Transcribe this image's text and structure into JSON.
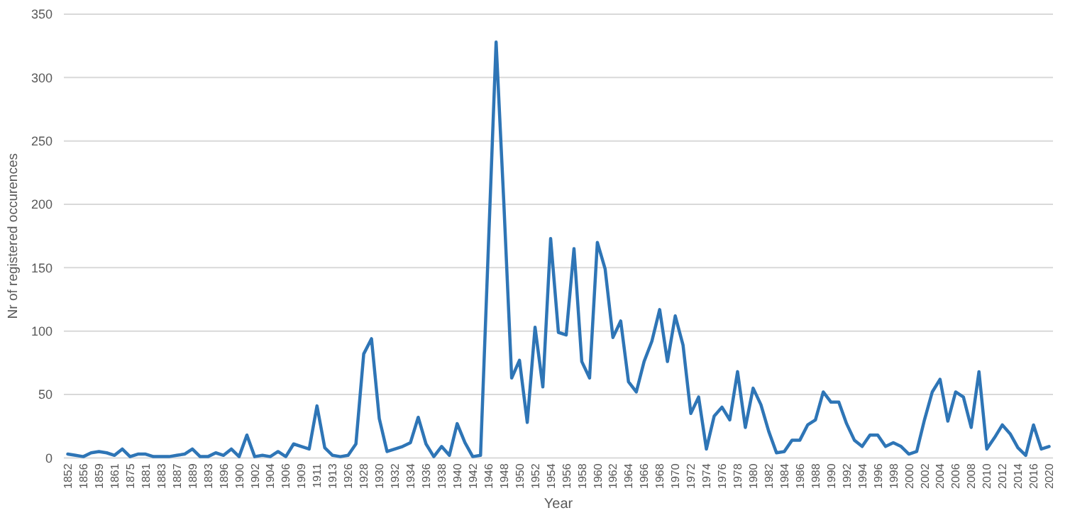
{
  "chart_data": {
    "type": "line",
    "xlabel": "Year",
    "ylabel": "Nr of registered occurences",
    "categories": [
      "1852",
      null,
      "1856",
      null,
      "1859",
      null,
      "1861",
      null,
      "1875",
      null,
      "1881",
      null,
      "1883",
      null,
      "1887",
      null,
      "1889",
      null,
      "1893",
      null,
      "1896",
      null,
      "1900",
      null,
      "1902",
      null,
      "1904",
      null,
      "1906",
      null,
      "1909",
      null,
      "1911",
      null,
      "1913",
      null,
      "1926",
      null,
      "1928",
      null,
      "1930",
      null,
      "1932",
      null,
      "1934",
      null,
      "1936",
      null,
      "1938",
      null,
      "1940",
      null,
      "1942",
      null,
      "1946",
      null,
      "1948",
      null,
      "1950",
      null,
      "1952",
      null,
      "1954",
      null,
      "1956",
      null,
      "1958",
      null,
      "1960",
      null,
      "1962",
      null,
      "1964",
      null,
      "1966",
      null,
      "1968",
      null,
      "1970",
      null,
      "1972",
      null,
      "1974",
      null,
      "1976",
      null,
      "1978",
      null,
      "1980",
      null,
      "1982",
      null,
      "1984",
      null,
      "1986",
      null,
      "1988",
      null,
      "1990",
      null,
      "1992",
      null,
      "1994",
      null,
      "1996",
      null,
      "1998",
      null,
      "2000",
      null,
      "2002",
      null,
      "2004",
      null,
      "2006",
      null,
      "2008",
      null,
      "2010",
      null,
      "2012",
      null,
      "2014",
      null,
      "2016",
      null,
      "2020"
    ],
    "series": [
      {
        "color": "#2e75b6",
        "values": [
          3,
          2,
          1,
          4,
          5,
          4,
          2,
          7,
          1,
          3,
          3,
          1,
          1,
          1,
          2,
          3,
          7,
          1,
          1,
          4,
          2,
          7,
          1,
          18,
          1,
          2,
          1,
          5,
          1,
          11,
          9,
          7,
          41,
          8,
          2,
          1,
          2,
          11,
          82,
          94,
          31,
          5,
          7,
          9,
          12,
          32,
          11,
          1,
          9,
          2,
          27,
          12,
          1,
          2,
          165,
          328,
          200,
          63,
          77,
          28,
          103,
          56,
          173,
          99,
          97,
          165,
          76,
          63,
          170,
          149,
          95,
          108,
          60,
          52,
          76,
          92,
          117,
          76,
          112,
          89,
          35,
          48,
          7,
          33,
          40,
          30,
          68,
          24,
          55,
          42,
          21,
          4,
          5,
          14,
          14,
          26,
          30,
          52,
          44,
          44,
          27,
          14,
          9,
          18,
          18,
          9,
          12,
          9,
          3,
          5,
          30,
          52,
          62,
          29,
          52,
          48,
          24,
          68,
          7,
          16,
          26,
          19,
          8,
          2,
          26,
          7,
          9
        ]
      }
    ],
    "ylim": [
      0,
      350
    ],
    "yticks": [
      0,
      50,
      100,
      150,
      200,
      250,
      300,
      350
    ],
    "grid": "y"
  }
}
